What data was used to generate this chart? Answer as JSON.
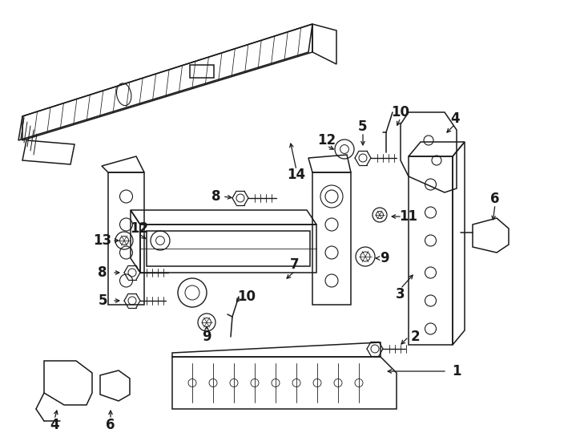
{
  "bg_color": "#ffffff",
  "line_color": "#1a1a1a",
  "lw": 1.1,
  "fig_w": 7.34,
  "fig_h": 5.4,
  "dpi": 100
}
